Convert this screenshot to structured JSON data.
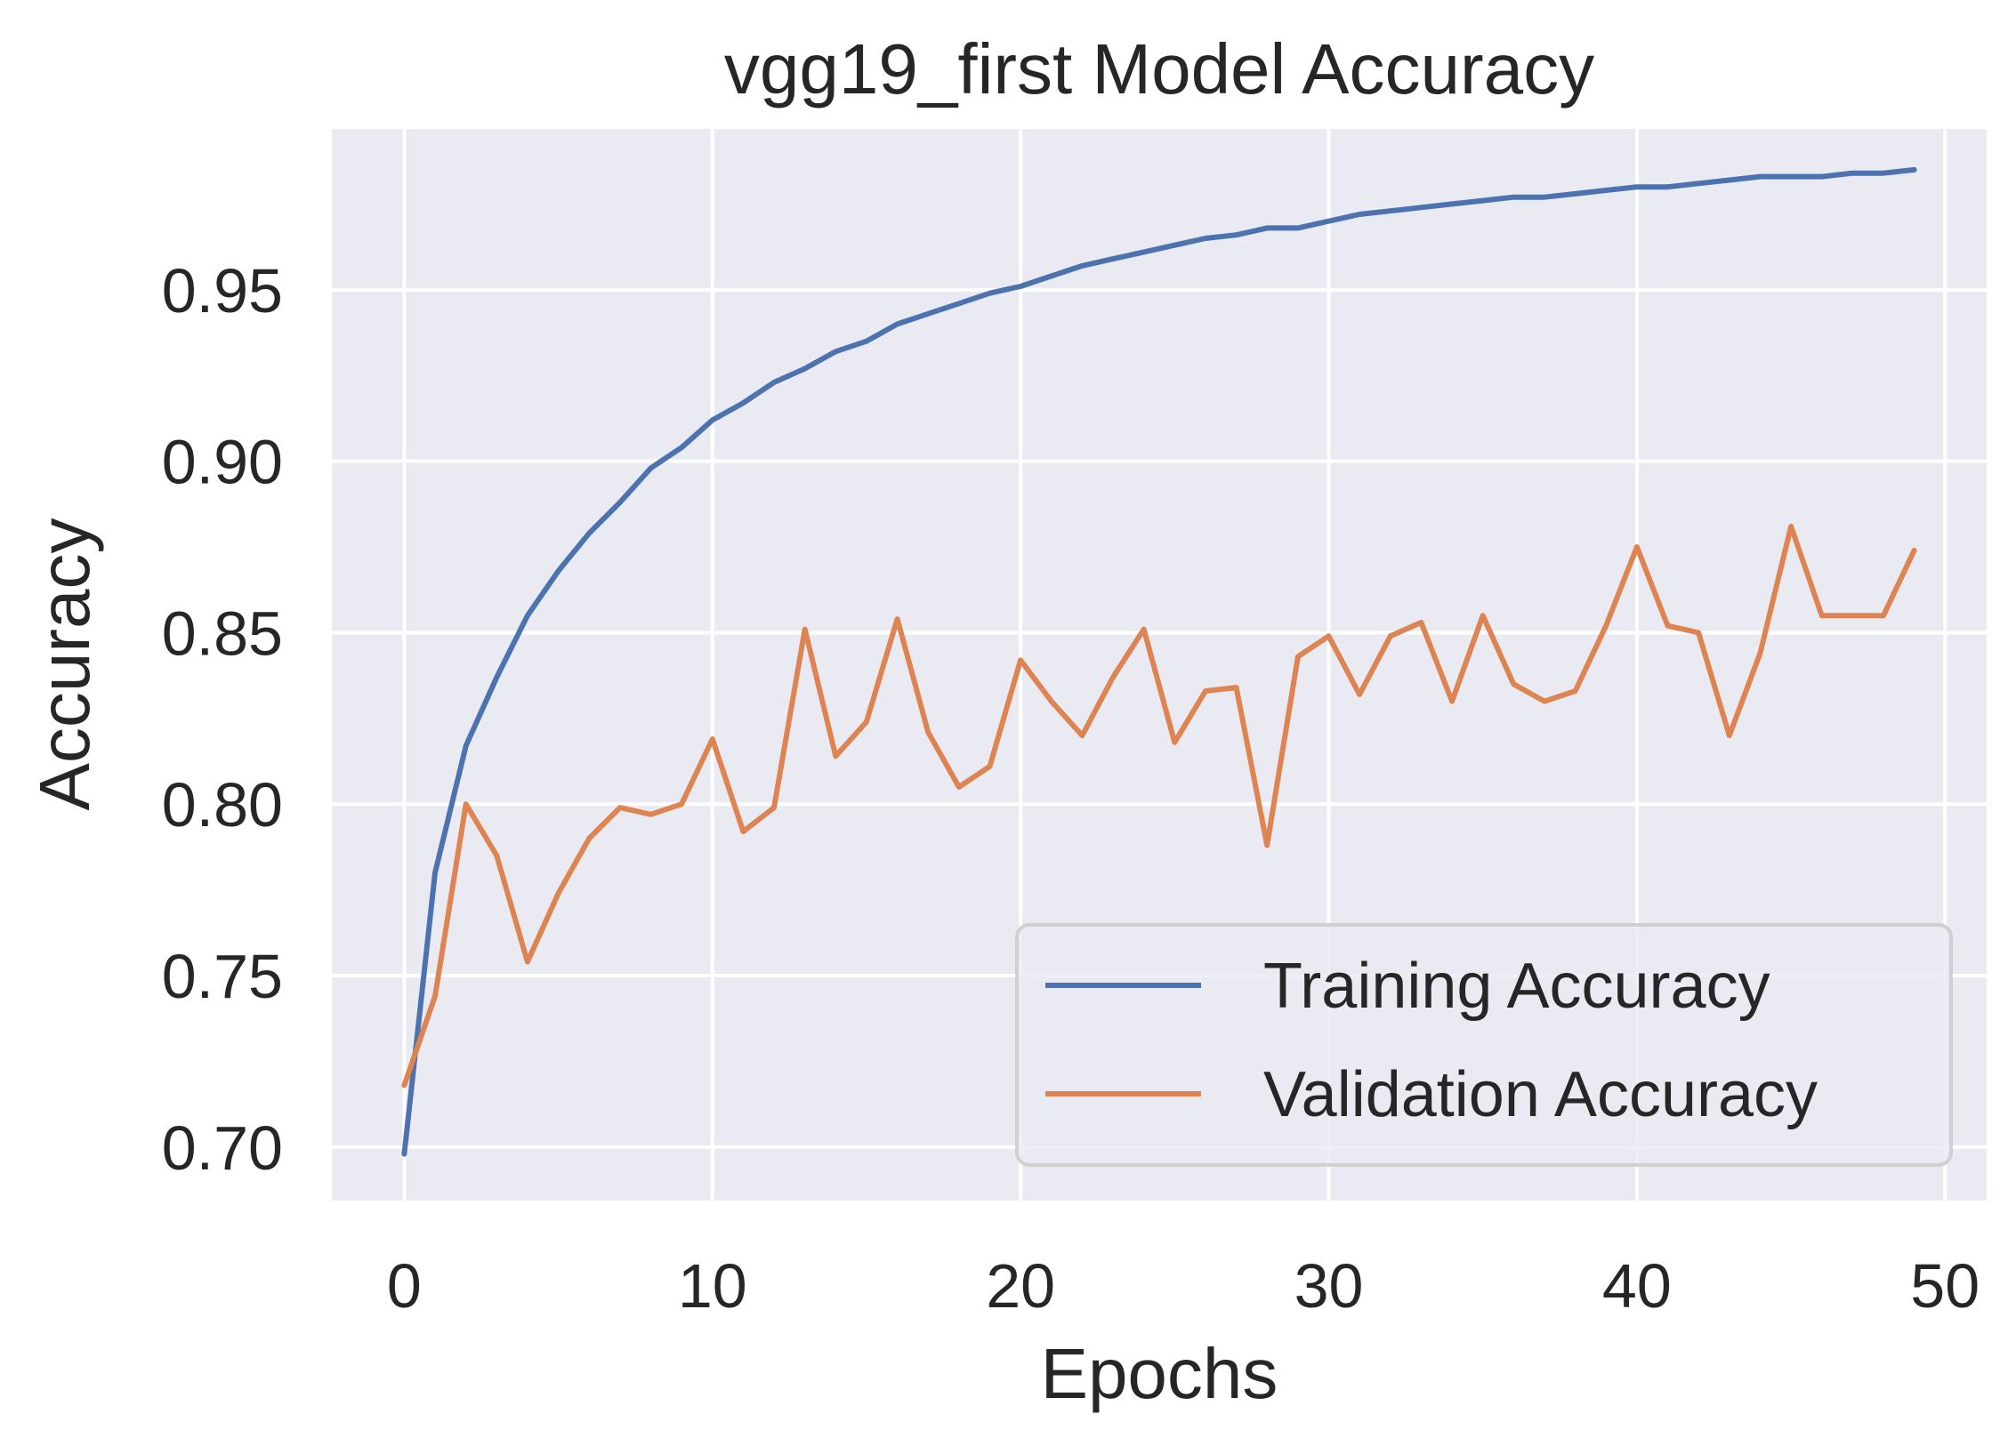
{
  "chart_data": {
    "type": "line",
    "title": "vgg19_first Model Accuracy",
    "xlabel": "Epochs",
    "ylabel": "Accuracy",
    "xlim": [
      -2.35,
      51.35
    ],
    "ylim": [
      0.6844,
      0.9969
    ],
    "x_ticks": [
      0,
      10,
      20,
      30,
      40,
      50
    ],
    "x_tick_labels": [
      "0",
      "10",
      "20",
      "30",
      "40",
      "50"
    ],
    "y_ticks": [
      0.7,
      0.75,
      0.8,
      0.85,
      0.9,
      0.95
    ],
    "y_tick_labels": [
      "0.70",
      "0.75",
      "0.80",
      "0.85",
      "0.90",
      "0.95"
    ],
    "grid": true,
    "legend_position": "lower-right",
    "x": [
      0,
      1,
      2,
      3,
      4,
      5,
      6,
      7,
      8,
      9,
      10,
      11,
      12,
      13,
      14,
      15,
      16,
      17,
      18,
      19,
      20,
      21,
      22,
      23,
      24,
      25,
      26,
      27,
      28,
      29,
      30,
      31,
      32,
      33,
      34,
      35,
      36,
      37,
      38,
      39,
      40,
      41,
      42,
      43,
      44,
      45,
      46,
      47,
      48,
      49
    ],
    "series": [
      {
        "name": "Training Accuracy",
        "color": "#4c72b0",
        "values": [
          0.698,
          0.78,
          0.817,
          0.837,
          0.855,
          0.868,
          0.879,
          0.888,
          0.898,
          0.904,
          0.912,
          0.917,
          0.923,
          0.927,
          0.932,
          0.935,
          0.94,
          0.943,
          0.946,
          0.949,
          0.951,
          0.954,
          0.957,
          0.959,
          0.961,
          0.963,
          0.965,
          0.966,
          0.968,
          0.968,
          0.97,
          0.972,
          0.973,
          0.974,
          0.975,
          0.976,
          0.977,
          0.977,
          0.978,
          0.979,
          0.98,
          0.98,
          0.981,
          0.982,
          0.983,
          0.983,
          0.983,
          0.984,
          0.984,
          0.985
        ]
      },
      {
        "name": "Validation Accuracy",
        "color": "#dd8452",
        "values": [
          0.718,
          0.744,
          0.8,
          0.785,
          0.754,
          0.774,
          0.79,
          0.799,
          0.797,
          0.8,
          0.819,
          0.792,
          0.799,
          0.851,
          0.814,
          0.824,
          0.854,
          0.821,
          0.805,
          0.811,
          0.842,
          0.83,
          0.82,
          0.837,
          0.851,
          0.818,
          0.833,
          0.834,
          0.788,
          0.843,
          0.849,
          0.832,
          0.849,
          0.853,
          0.83,
          0.855,
          0.835,
          0.83,
          0.833,
          0.852,
          0.875,
          0.852,
          0.85,
          0.82,
          0.844,
          0.881,
          0.855,
          0.855,
          0.855,
          0.874
        ]
      }
    ]
  }
}
